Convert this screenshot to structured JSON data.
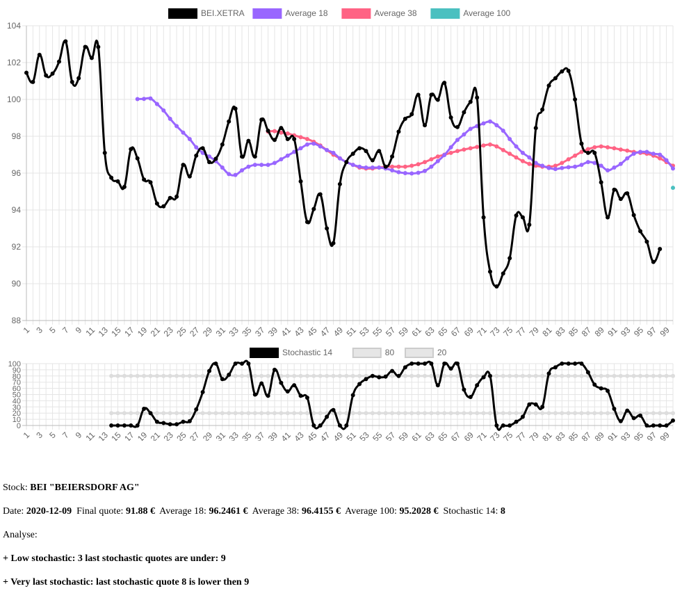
{
  "chart_data": [
    {
      "type": "line",
      "legend_position": "top",
      "grid": true,
      "ylim": [
        88,
        104
      ],
      "y_ticks": [
        "88",
        "90",
        "92",
        "94",
        "96",
        "98",
        "100",
        "102",
        "104"
      ],
      "x": [
        1,
        2,
        3,
        4,
        5,
        6,
        7,
        8,
        9,
        10,
        11,
        12,
        13,
        14,
        15,
        16,
        17,
        18,
        19,
        20,
        21,
        22,
        23,
        24,
        25,
        26,
        27,
        28,
        29,
        30,
        31,
        32,
        33,
        34,
        35,
        36,
        37,
        38,
        39,
        40,
        41,
        42,
        43,
        44,
        45,
        46,
        47,
        48,
        49,
        50,
        51,
        52,
        53,
        54,
        55,
        56,
        57,
        58,
        59,
        60,
        61,
        62,
        63,
        64,
        65,
        66,
        67,
        68,
        69,
        70,
        71,
        72,
        73,
        74,
        75,
        76,
        77,
        78,
        79,
        80,
        81,
        82,
        83,
        84,
        85,
        86,
        87,
        88,
        89,
        90,
        91,
        92,
        93,
        94,
        95,
        96,
        97,
        98,
        99,
        100
      ],
      "x_tick_labels": [
        "1",
        "3",
        "5",
        "7",
        "9",
        "11",
        "13",
        "15",
        "17",
        "19",
        "21",
        "23",
        "25",
        "27",
        "29",
        "31",
        "33",
        "35",
        "37",
        "39",
        "41",
        "43",
        "45",
        "47",
        "49",
        "51",
        "53",
        "55",
        "57",
        "59",
        "61",
        "63",
        "65",
        "67",
        "69",
        "71",
        "73",
        "75",
        "77",
        "79",
        "81",
        "83",
        "85",
        "87",
        "89",
        "91",
        "93",
        "95",
        "97",
        "99"
      ],
      "series": [
        {
          "name": "BEI.XETRA",
          "color": "#000000",
          "values": [
            101.45,
            100.95,
            102.42,
            101.3,
            101.4,
            102.05,
            103.15,
            100.95,
            101.15,
            102.85,
            102.25,
            102.85,
            97.1,
            95.75,
            95.55,
            95.25,
            97.3,
            96.8,
            95.65,
            95.5,
            94.35,
            94.2,
            94.65,
            94.72,
            96.45,
            95.82,
            96.95,
            97.35,
            96.6,
            96.78,
            97.55,
            98.8,
            99.5,
            96.9,
            97.75,
            96.9,
            98.9,
            98.3,
            97.8,
            98.45,
            97.85,
            97.85,
            95.55,
            93.35,
            94.05,
            94.85,
            93,
            92.2,
            95.4,
            96.6,
            97.05,
            97.35,
            97.2,
            96.7,
            97.2,
            96.35,
            96.9,
            98.25,
            98.95,
            99.2,
            100.25,
            98.6,
            100.25,
            99.98,
            100.9,
            99.02,
            98.5,
            99.3,
            99.87,
            100.1,
            93.6,
            90.65,
            89.85,
            90.55,
            91.38,
            93.7,
            93.6,
            93.2,
            98.45,
            99.45,
            100.75,
            101.15,
            101.52,
            101.55,
            100.0,
            97.6,
            97.1,
            97.1,
            95.5,
            93.6,
            95.1,
            94.6,
            94.9,
            93.72,
            92.85,
            92.28,
            91.18,
            91.88,
            null,
            null
          ]
        },
        {
          "name": "Average 18",
          "color": "#9966ff",
          "values": [
            null,
            null,
            null,
            null,
            null,
            null,
            null,
            null,
            null,
            null,
            null,
            null,
            null,
            null,
            null,
            null,
            null,
            100.02,
            100.03,
            100.05,
            99.75,
            99.4,
            98.95,
            98.55,
            98.2,
            97.85,
            97.4,
            97.1,
            96.9,
            96.65,
            96.3,
            95.95,
            95.9,
            96.15,
            96.35,
            96.45,
            96.45,
            96.45,
            96.55,
            96.75,
            96.95,
            97.15,
            97.35,
            97.55,
            97.6,
            97.45,
            97.25,
            97.1,
            96.8,
            96.6,
            96.45,
            96.35,
            96.3,
            96.3,
            96.3,
            96.25,
            96.15,
            96.05,
            96.0,
            95.98,
            96.02,
            96.12,
            96.35,
            96.65,
            96.98,
            97.4,
            97.8,
            98.1,
            98.4,
            98.55,
            98.7,
            98.8,
            98.6,
            98.3,
            97.85,
            97.45,
            97.1,
            96.85,
            96.55,
            96.4,
            96.28,
            96.22,
            96.28,
            96.32,
            96.35,
            96.45,
            96.6,
            96.55,
            96.4,
            96.15,
            96.3,
            96.5,
            96.8,
            97.05,
            97.15,
            97.15,
            97.05,
            97.0,
            96.7,
            96.25
          ]
        },
        {
          "name": "Average 38",
          "color": "#ff6384",
          "values": [
            null,
            null,
            null,
            null,
            null,
            null,
            null,
            null,
            null,
            null,
            null,
            null,
            null,
            null,
            null,
            null,
            null,
            null,
            null,
            null,
            null,
            null,
            null,
            null,
            null,
            null,
            null,
            null,
            null,
            null,
            null,
            null,
            null,
            null,
            null,
            null,
            null,
            98.25,
            98.28,
            98.2,
            98.15,
            98.05,
            97.95,
            97.85,
            97.7,
            97.5,
            97.25,
            97.0,
            96.8,
            96.6,
            96.45,
            96.3,
            96.25,
            96.25,
            96.3,
            96.35,
            96.35,
            96.35,
            96.35,
            96.4,
            96.48,
            96.6,
            96.75,
            96.9,
            97.0,
            97.1,
            97.2,
            97.28,
            97.35,
            97.42,
            97.5,
            97.55,
            97.45,
            97.25,
            97.05,
            96.85,
            96.65,
            96.5,
            96.4,
            96.35,
            96.35,
            96.4,
            96.55,
            96.75,
            96.95,
            97.15,
            97.3,
            97.4,
            97.45,
            97.4,
            97.35,
            97.28,
            97.22,
            97.15,
            97.1,
            97.05,
            96.95,
            96.8,
            96.6,
            96.4
          ]
        },
        {
          "name": "Average 100",
          "color": "#4bc0c0",
          "values": [
            null,
            null,
            null,
            null,
            null,
            null,
            null,
            null,
            null,
            null,
            null,
            null,
            null,
            null,
            null,
            null,
            null,
            null,
            null,
            null,
            null,
            null,
            null,
            null,
            null,
            null,
            null,
            null,
            null,
            null,
            null,
            null,
            null,
            null,
            null,
            null,
            null,
            null,
            null,
            null,
            null,
            null,
            null,
            null,
            null,
            null,
            null,
            null,
            null,
            null,
            null,
            null,
            null,
            null,
            null,
            null,
            null,
            null,
            null,
            null,
            null,
            null,
            null,
            null,
            null,
            null,
            null,
            null,
            null,
            null,
            null,
            null,
            null,
            null,
            null,
            null,
            null,
            null,
            null,
            null,
            null,
            null,
            null,
            null,
            null,
            null,
            null,
            null,
            null,
            null,
            null,
            null,
            null,
            null,
            null,
            null,
            null,
            null,
            null,
            95.2028
          ]
        }
      ]
    },
    {
      "type": "line",
      "legend_position": "top",
      "grid": true,
      "ylim": [
        0,
        100
      ],
      "y_ticks": [
        "0",
        "10",
        "20",
        "30",
        "40",
        "50",
        "60",
        "70",
        "80",
        "90",
        "100"
      ],
      "x": [
        1,
        2,
        3,
        4,
        5,
        6,
        7,
        8,
        9,
        10,
        11,
        12,
        13,
        14,
        15,
        16,
        17,
        18,
        19,
        20,
        21,
        22,
        23,
        24,
        25,
        26,
        27,
        28,
        29,
        30,
        31,
        32,
        33,
        34,
        35,
        36,
        37,
        38,
        39,
        40,
        41,
        42,
        43,
        44,
        45,
        46,
        47,
        48,
        49,
        50,
        51,
        52,
        53,
        54,
        55,
        56,
        57,
        58,
        59,
        60,
        61,
        62,
        63,
        64,
        65,
        66,
        67,
        68,
        69,
        70,
        71,
        72,
        73,
        74,
        75,
        76,
        77,
        78,
        79,
        80,
        81,
        82,
        83,
        84,
        85,
        86,
        87,
        88,
        89,
        90,
        91,
        92,
        93,
        94,
        95,
        96,
        97,
        98,
        99,
        100
      ],
      "x_tick_labels": [
        "1",
        "3",
        "5",
        "7",
        "9",
        "11",
        "13",
        "15",
        "17",
        "19",
        "21",
        "23",
        "25",
        "27",
        "29",
        "31",
        "33",
        "35",
        "37",
        "39",
        "41",
        "43",
        "45",
        "47",
        "49",
        "51",
        "53",
        "55",
        "57",
        "59",
        "61",
        "63",
        "65",
        "67",
        "69",
        "71",
        "73",
        "75",
        "77",
        "79",
        "81",
        "83",
        "85",
        "87",
        "89",
        "91",
        "93",
        "95",
        "97",
        "99"
      ],
      "series": [
        {
          "name": "Stochastic 14",
          "color": "#000000",
          "values": [
            null,
            null,
            null,
            null,
            null,
            null,
            null,
            null,
            null,
            null,
            null,
            null,
            null,
            0,
            0,
            0,
            0,
            0,
            27,
            20,
            6,
            4,
            2,
            2,
            6,
            7,
            26,
            54,
            88,
            100,
            75,
            82,
            100,
            100,
            100,
            50,
            68,
            48,
            90,
            69,
            55,
            65,
            48,
            45,
            0,
            0,
            14,
            25,
            0,
            0,
            49,
            67,
            75,
            80,
            78,
            79,
            88,
            80,
            94,
            100,
            100,
            100,
            100,
            65,
            100,
            92,
            100,
            58,
            46,
            65,
            78,
            80,
            0,
            0,
            0,
            6,
            14,
            34,
            34,
            30,
            84,
            94,
            100,
            100,
            100,
            100,
            86,
            66,
            60,
            56,
            27,
            7,
            24,
            12,
            16,
            0,
            0,
            0,
            0,
            8
          ]
        },
        {
          "name": "80",
          "color": "#dddddd",
          "values": [
            null,
            null,
            null,
            null,
            null,
            null,
            null,
            null,
            null,
            null,
            null,
            null,
            null,
            80,
            80,
            80,
            80,
            80,
            80,
            80,
            80,
            80,
            80,
            80,
            80,
            80,
            80,
            80,
            80,
            80,
            80,
            80,
            80,
            80,
            80,
            80,
            80,
            80,
            80,
            80,
            80,
            80,
            80,
            80,
            80,
            80,
            80,
            80,
            80,
            80,
            80,
            80,
            80,
            80,
            80,
            80,
            80,
            80,
            80,
            80,
            80,
            80,
            80,
            80,
            80,
            80,
            80,
            80,
            80,
            80,
            80,
            80,
            80,
            80,
            80,
            80,
            80,
            80,
            80,
            80,
            80,
            80,
            80,
            80,
            80,
            80,
            80,
            80,
            80,
            80,
            80,
            80,
            80,
            80,
            80,
            80,
            80,
            80,
            80,
            80
          ]
        },
        {
          "name": "20",
          "color": "#dddddd",
          "values": [
            null,
            null,
            null,
            null,
            null,
            null,
            null,
            null,
            null,
            null,
            null,
            null,
            null,
            20,
            20,
            20,
            20,
            20,
            20,
            20,
            20,
            20,
            20,
            20,
            20,
            20,
            20,
            20,
            20,
            20,
            20,
            20,
            20,
            20,
            20,
            20,
            20,
            20,
            20,
            20,
            20,
            20,
            20,
            20,
            20,
            20,
            20,
            20,
            20,
            20,
            20,
            20,
            20,
            20,
            20,
            20,
            20,
            20,
            20,
            20,
            20,
            20,
            20,
            20,
            20,
            20,
            20,
            20,
            20,
            20,
            20,
            20,
            20,
            20,
            20,
            20,
            20,
            20,
            20,
            20,
            20,
            20,
            20,
            20,
            20,
            20,
            20,
            20,
            20,
            20,
            20,
            20,
            20,
            20,
            20,
            20,
            20,
            20,
            20,
            20
          ]
        }
      ]
    }
  ],
  "info": {
    "stock_label": "Stock:",
    "stock_value": "BEI \"BEIERSDORF AG\"",
    "date_label": "Date:",
    "date_value": "2020-12-09",
    "final_label": "Final quote:",
    "final_value": "91.88 €",
    "avg18_label": "Average 18:",
    "avg18_value": "96.2461 €",
    "avg38_label": "Average 38:",
    "avg38_value": "96.4155 €",
    "avg100_label": "Average 100:",
    "avg100_value": "95.2028 €",
    "stoch_label": "Stochastic 14:",
    "stoch_value": "8",
    "analyse_label": "Analyse:",
    "line1": "+ Low stochastic: 3 last stochastic quotes are under: 9",
    "line2": "+ Very last stochastic: last stochastic quote 8 is lower then 9"
  }
}
